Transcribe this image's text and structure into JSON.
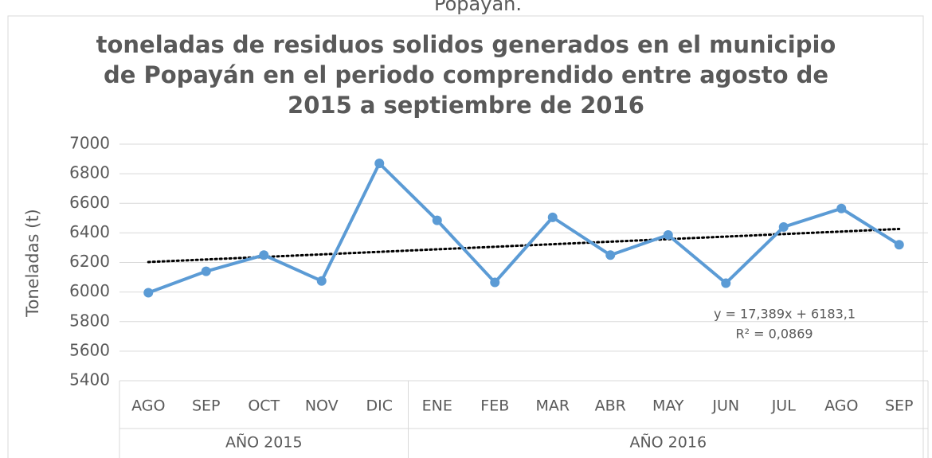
{
  "chart_data": {
    "type": "line",
    "top_caption": "Popayán.",
    "title": [
      "toneladas de residuos solidos generados en el municipio",
      "de Popayán en el periodo comprendido entre agosto de",
      "2015 a septiembre de 2016"
    ],
    "y_label": "Toneladas (t)",
    "categories": [
      "AGO",
      "SEP",
      "OCT",
      "NOV",
      "DIC",
      "ENE",
      "FEB",
      "MAR",
      "ABR",
      "MAY",
      "JUN",
      "JUL",
      "AGO",
      "SEP"
    ],
    "groups": [
      {
        "name": "AÑO 2015",
        "size": 5
      },
      {
        "name": "AÑO 2016",
        "size": 9
      }
    ],
    "series": [
      {
        "name": "Toneladas",
        "color": "#5b9bd5",
        "values": [
          5995,
          6140,
          6250,
          6075,
          6870,
          6485,
          6065,
          6505,
          6250,
          6386,
          6060,
          6440,
          6565,
          6320
        ]
      }
    ],
    "trendline": {
      "type": "linear",
      "color": "#000000",
      "equation": "y = 17,389x + 6183,1",
      "r2": "R² = 0,0869"
    },
    "ylim": [
      5400,
      7000
    ],
    "yticks": [
      5400,
      5600,
      5800,
      6000,
      6200,
      6400,
      6600,
      6800,
      7000
    ],
    "grid": true
  }
}
